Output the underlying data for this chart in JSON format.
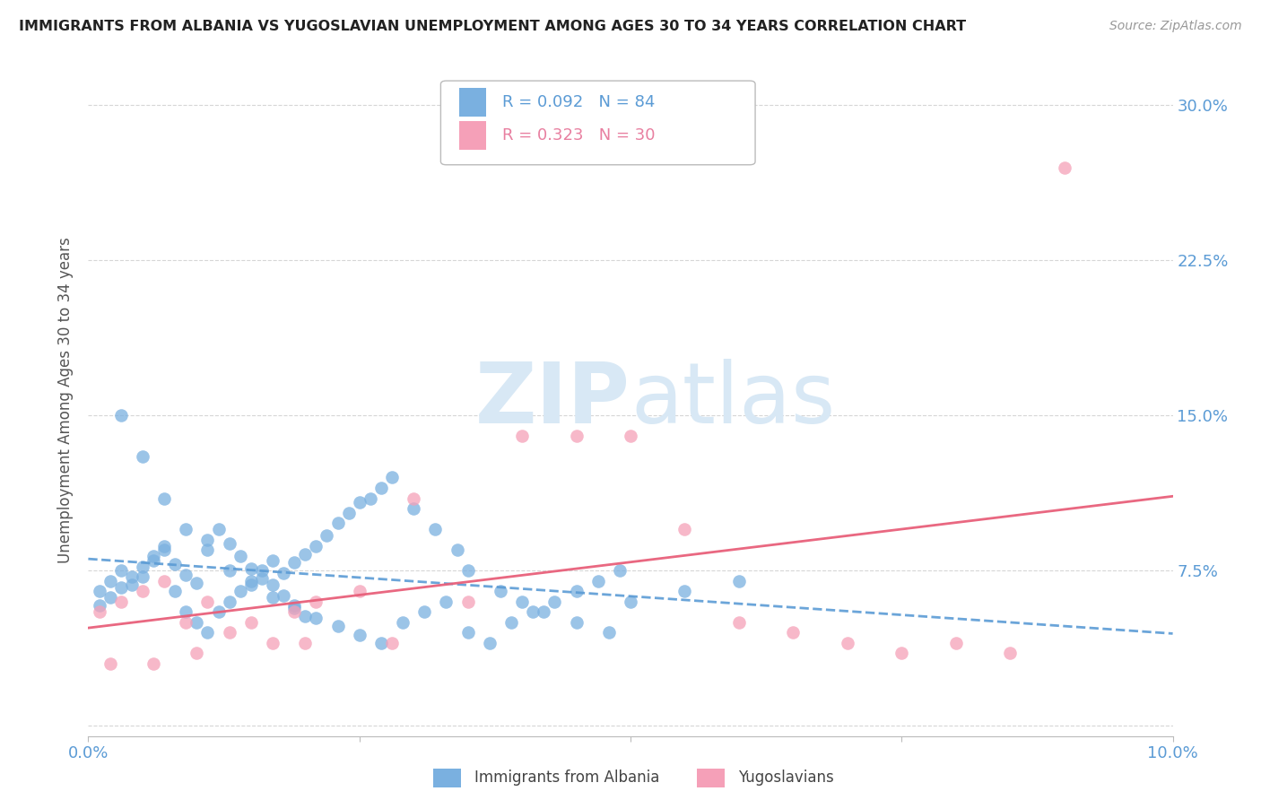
{
  "title": "IMMIGRANTS FROM ALBANIA VS YUGOSLAVIAN UNEMPLOYMENT AMONG AGES 30 TO 34 YEARS CORRELATION CHART",
  "source": "Source: ZipAtlas.com",
  "ylabel": "Unemployment Among Ages 30 to 34 years",
  "yticks": [
    0.0,
    0.075,
    0.15,
    0.225,
    0.3
  ],
  "ytick_labels": [
    "",
    "7.5%",
    "15.0%",
    "22.5%",
    "30.0%"
  ],
  "xticks": [
    0.0,
    0.025,
    0.05,
    0.075,
    0.1
  ],
  "xtick_labels": [
    "0.0%",
    "",
    "",
    "",
    "10.0%"
  ],
  "xlim": [
    0.0,
    0.1
  ],
  "ylim": [
    -0.005,
    0.32
  ],
  "legend1_label": "Immigrants from Albania",
  "legend2_label": "Yugoslavians",
  "R1": "0.092",
  "N1": "84",
  "R2": "0.323",
  "N2": "30",
  "color_blue": "#7ab0e0",
  "color_pink": "#f5a0b8",
  "color_blue_text": "#5b9bd5",
  "color_pink_text": "#e87fa0",
  "color_trendline_blue": "#5b9bd5",
  "color_trendline_pink": "#e8607a",
  "watermark_color": "#d8e8f5",
  "albania_x": [
    0.001,
    0.002,
    0.003,
    0.004,
    0.005,
    0.006,
    0.007,
    0.008,
    0.009,
    0.01,
    0.011,
    0.012,
    0.013,
    0.014,
    0.015,
    0.016,
    0.017,
    0.018,
    0.019,
    0.02,
    0.021,
    0.022,
    0.023,
    0.024,
    0.025,
    0.026,
    0.027,
    0.028,
    0.03,
    0.032,
    0.034,
    0.035,
    0.038,
    0.04,
    0.042,
    0.045,
    0.048,
    0.05,
    0.055,
    0.06,
    0.001,
    0.002,
    0.003,
    0.004,
    0.005,
    0.006,
    0.007,
    0.008,
    0.009,
    0.01,
    0.011,
    0.012,
    0.013,
    0.014,
    0.015,
    0.016,
    0.017,
    0.018,
    0.019,
    0.02,
    0.003,
    0.005,
    0.007,
    0.009,
    0.011,
    0.013,
    0.015,
    0.017,
    0.019,
    0.021,
    0.023,
    0.025,
    0.027,
    0.029,
    0.031,
    0.033,
    0.035,
    0.037,
    0.039,
    0.041,
    0.043,
    0.045,
    0.047,
    0.049
  ],
  "albania_y": [
    0.065,
    0.07,
    0.075,
    0.068,
    0.072,
    0.08,
    0.085,
    0.078,
    0.073,
    0.069,
    0.09,
    0.095,
    0.088,
    0.082,
    0.076,
    0.071,
    0.068,
    0.074,
    0.079,
    0.083,
    0.087,
    0.092,
    0.098,
    0.103,
    0.108,
    0.11,
    0.115,
    0.12,
    0.105,
    0.095,
    0.085,
    0.075,
    0.065,
    0.06,
    0.055,
    0.05,
    0.045,
    0.06,
    0.065,
    0.07,
    0.058,
    0.062,
    0.067,
    0.072,
    0.077,
    0.082,
    0.087,
    0.065,
    0.055,
    0.05,
    0.045,
    0.055,
    0.06,
    0.065,
    0.07,
    0.075,
    0.08,
    0.063,
    0.058,
    0.053,
    0.15,
    0.13,
    0.11,
    0.095,
    0.085,
    0.075,
    0.068,
    0.062,
    0.057,
    0.052,
    0.048,
    0.044,
    0.04,
    0.05,
    0.055,
    0.06,
    0.045,
    0.04,
    0.05,
    0.055,
    0.06,
    0.065,
    0.07,
    0.075
  ],
  "yugoslavia_x": [
    0.001,
    0.003,
    0.005,
    0.007,
    0.009,
    0.011,
    0.013,
    0.015,
    0.017,
    0.019,
    0.021,
    0.025,
    0.03,
    0.035,
    0.04,
    0.045,
    0.05,
    0.055,
    0.06,
    0.065,
    0.07,
    0.075,
    0.08,
    0.085,
    0.09,
    0.002,
    0.006,
    0.01,
    0.02,
    0.028
  ],
  "yugoslavia_y": [
    0.055,
    0.06,
    0.065,
    0.07,
    0.05,
    0.06,
    0.045,
    0.05,
    0.04,
    0.055,
    0.06,
    0.065,
    0.11,
    0.06,
    0.14,
    0.14,
    0.14,
    0.095,
    0.05,
    0.045,
    0.04,
    0.035,
    0.04,
    0.035,
    0.27,
    0.03,
    0.03,
    0.035,
    0.04,
    0.04
  ]
}
